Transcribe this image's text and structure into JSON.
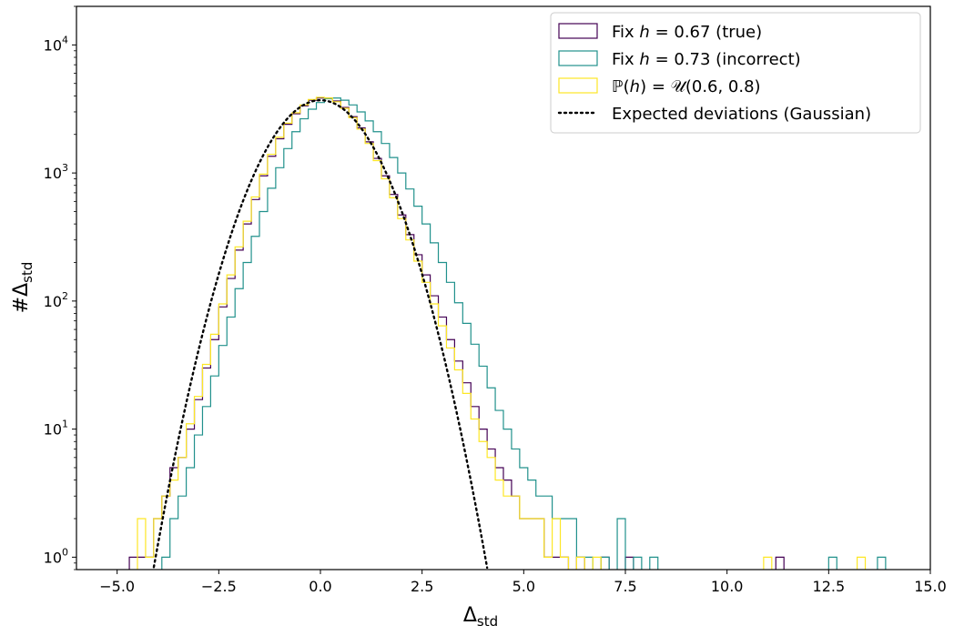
{
  "chart_data": {
    "type": "histogram",
    "xlabel": "Δ",
    "xlabel_sub": "std",
    "ylabel": "#Δ",
    "ylabel_sub": "std",
    "xlim": [
      -6,
      15
    ],
    "ylim": [
      0.8,
      20000
    ],
    "y_scale": "log",
    "grid": false,
    "legend_position": "top-right",
    "x_ticks": [
      -5.0,
      -2.5,
      0.0,
      2.5,
      5.0,
      7.5,
      10.0,
      12.5,
      15.0
    ],
    "x_tick_labels": [
      "−5.0",
      "−2.5",
      "0.0",
      "2.5",
      "5.0",
      "7.5",
      "10.0",
      "12.5",
      "15.0"
    ],
    "y_ticks": [
      1,
      10,
      100,
      1000,
      10000
    ],
    "y_tick_labels": [
      {
        "base": "10",
        "exp": "0"
      },
      {
        "base": "10",
        "exp": "1"
      },
      {
        "base": "10",
        "exp": "2"
      },
      {
        "base": "10",
        "exp": "3"
      },
      {
        "base": "10",
        "exp": "4"
      }
    ],
    "series": [
      {
        "name": "Fix h = 0.67 (true)",
        "color": "#440154",
        "style": "step",
        "legend_parts": [
          {
            "t": "Fix ",
            "italic": false
          },
          {
            "t": "h",
            "italic": true
          },
          {
            "t": " = 0.67 (true)",
            "italic": false
          }
        ],
        "points": [
          [
            -4.6,
            1
          ],
          [
            -4.4,
            1
          ],
          [
            -4.2,
            1
          ],
          [
            -4.0,
            2
          ],
          [
            -3.8,
            3
          ],
          [
            -3.6,
            5
          ],
          [
            -3.4,
            6
          ],
          [
            -3.2,
            10
          ],
          [
            -3.0,
            17
          ],
          [
            -2.8,
            30
          ],
          [
            -2.6,
            50
          ],
          [
            -2.4,
            90
          ],
          [
            -2.2,
            150
          ],
          [
            -2.0,
            250
          ],
          [
            -1.8,
            400
          ],
          [
            -1.6,
            620
          ],
          [
            -1.4,
            950
          ],
          [
            -1.2,
            1350
          ],
          [
            -1.0,
            1850
          ],
          [
            -0.8,
            2400
          ],
          [
            -0.6,
            2900
          ],
          [
            -0.4,
            3350
          ],
          [
            -0.2,
            3700
          ],
          [
            0.0,
            3850
          ],
          [
            0.2,
            3850
          ],
          [
            0.4,
            3650
          ],
          [
            0.6,
            3250
          ],
          [
            0.8,
            2750
          ],
          [
            1.0,
            2250
          ],
          [
            1.2,
            1750
          ],
          [
            1.4,
            1300
          ],
          [
            1.6,
            950
          ],
          [
            1.8,
            680
          ],
          [
            2.0,
            470
          ],
          [
            2.2,
            330
          ],
          [
            2.4,
            230
          ],
          [
            2.6,
            160
          ],
          [
            2.8,
            110
          ],
          [
            3.0,
            75
          ],
          [
            3.2,
            50
          ],
          [
            3.4,
            34
          ],
          [
            3.6,
            23
          ],
          [
            3.8,
            15
          ],
          [
            4.0,
            10
          ],
          [
            4.2,
            7
          ],
          [
            4.4,
            5
          ],
          [
            4.6,
            4
          ],
          [
            4.8,
            3
          ],
          [
            5.0,
            2
          ],
          [
            5.2,
            2
          ],
          [
            5.4,
            2
          ],
          [
            5.6,
            1
          ],
          [
            5.8,
            1
          ],
          [
            6.0,
            1
          ],
          [
            6.4,
            1
          ],
          [
            7.0,
            1
          ],
          [
            7.6,
            1
          ],
          [
            11.3,
            1
          ]
        ]
      },
      {
        "name": "Fix h = 0.73 (incorrect)",
        "color": "#21918c",
        "style": "step",
        "legend_parts": [
          {
            "t": "Fix ",
            "italic": false
          },
          {
            "t": "h",
            "italic": true
          },
          {
            "t": " = 0.73 (incorrect)",
            "italic": false
          }
        ],
        "points": [
          [
            -3.8,
            1
          ],
          [
            -3.6,
            2
          ],
          [
            -3.4,
            3
          ],
          [
            -3.2,
            5
          ],
          [
            -3.0,
            9
          ],
          [
            -2.8,
            15
          ],
          [
            -2.6,
            26
          ],
          [
            -2.4,
            45
          ],
          [
            -2.2,
            75
          ],
          [
            -2.0,
            125
          ],
          [
            -1.8,
            200
          ],
          [
            -1.6,
            320
          ],
          [
            -1.4,
            500
          ],
          [
            -1.2,
            760
          ],
          [
            -1.0,
            1100
          ],
          [
            -0.8,
            1550
          ],
          [
            -0.6,
            2100
          ],
          [
            -0.4,
            2650
          ],
          [
            -0.2,
            3150
          ],
          [
            0.0,
            3550
          ],
          [
            0.2,
            3800
          ],
          [
            0.4,
            3850
          ],
          [
            0.6,
            3700
          ],
          [
            0.8,
            3400
          ],
          [
            1.0,
            3000
          ],
          [
            1.2,
            2550
          ],
          [
            1.4,
            2100
          ],
          [
            1.6,
            1700
          ],
          [
            1.8,
            1320
          ],
          [
            2.0,
            1000
          ],
          [
            2.2,
            750
          ],
          [
            2.4,
            550
          ],
          [
            2.6,
            400
          ],
          [
            2.8,
            285
          ],
          [
            3.0,
            200
          ],
          [
            3.2,
            140
          ],
          [
            3.4,
            97
          ],
          [
            3.6,
            67
          ],
          [
            3.8,
            46
          ],
          [
            4.0,
            31
          ],
          [
            4.2,
            21
          ],
          [
            4.4,
            14
          ],
          [
            4.6,
            10
          ],
          [
            4.8,
            7
          ],
          [
            5.0,
            5
          ],
          [
            5.2,
            4
          ],
          [
            5.4,
            3
          ],
          [
            5.6,
            3
          ],
          [
            5.8,
            2
          ],
          [
            6.0,
            2
          ],
          [
            6.2,
            2
          ],
          [
            6.4,
            1
          ],
          [
            6.6,
            1
          ],
          [
            7.0,
            1
          ],
          [
            7.4,
            2
          ],
          [
            7.8,
            1
          ],
          [
            8.2,
            1
          ],
          [
            12.6,
            1
          ],
          [
            13.8,
            1
          ]
        ]
      },
      {
        "name": "P(h) = U(0.6, 0.8)",
        "color": "#fde725",
        "style": "step",
        "legend_parts": [
          {
            "t": "ℙ",
            "italic": false
          },
          {
            "t": "(",
            "italic": false
          },
          {
            "t": "h",
            "italic": true
          },
          {
            "t": ") = ",
            "italic": false
          },
          {
            "t": "𝒰",
            "italic": false
          },
          {
            "t": "(0.6, 0.8)",
            "italic": false
          }
        ],
        "points": [
          [
            -4.4,
            2
          ],
          [
            -4.2,
            1
          ],
          [
            -4.0,
            2
          ],
          [
            -3.8,
            3
          ],
          [
            -3.6,
            4
          ],
          [
            -3.4,
            6
          ],
          [
            -3.2,
            11
          ],
          [
            -3.0,
            18
          ],
          [
            -2.8,
            32
          ],
          [
            -2.6,
            55
          ],
          [
            -2.4,
            95
          ],
          [
            -2.2,
            160
          ],
          [
            -2.0,
            265
          ],
          [
            -1.8,
            420
          ],
          [
            -1.6,
            650
          ],
          [
            -1.4,
            980
          ],
          [
            -1.2,
            1400
          ],
          [
            -1.0,
            1900
          ],
          [
            -0.8,
            2450
          ],
          [
            -0.6,
            2950
          ],
          [
            -0.4,
            3400
          ],
          [
            -0.2,
            3750
          ],
          [
            0.0,
            3900
          ],
          [
            0.2,
            3850
          ],
          [
            0.4,
            3600
          ],
          [
            0.6,
            3200
          ],
          [
            0.8,
            2700
          ],
          [
            1.0,
            2200
          ],
          [
            1.2,
            1700
          ],
          [
            1.4,
            1250
          ],
          [
            1.6,
            900
          ],
          [
            1.8,
            640
          ],
          [
            2.0,
            440
          ],
          [
            2.2,
            300
          ],
          [
            2.4,
            205
          ],
          [
            2.6,
            140
          ],
          [
            2.8,
            95
          ],
          [
            3.0,
            64
          ],
          [
            3.2,
            43
          ],
          [
            3.4,
            29
          ],
          [
            3.6,
            19
          ],
          [
            3.8,
            12
          ],
          [
            4.0,
            8
          ],
          [
            4.2,
            6
          ],
          [
            4.4,
            4
          ],
          [
            4.6,
            3
          ],
          [
            4.8,
            3
          ],
          [
            5.0,
            2
          ],
          [
            5.2,
            2
          ],
          [
            5.4,
            2
          ],
          [
            5.6,
            1
          ],
          [
            5.8,
            2
          ],
          [
            6.0,
            1
          ],
          [
            6.4,
            1
          ],
          [
            6.8,
            1
          ],
          [
            11.0,
            1
          ],
          [
            13.3,
            1
          ]
        ]
      },
      {
        "name": "Expected deviations (Gaussian)",
        "color": "#000000",
        "style": "dotted",
        "legend_parts": [
          {
            "t": "Expected deviations (Gaussian)",
            "italic": false
          }
        ],
        "curve": {
          "type": "gaussian",
          "amplitude": 3700,
          "mean": 0,
          "sd": 1,
          "x_range": [
            -4.2,
            4.1
          ]
        }
      }
    ]
  }
}
